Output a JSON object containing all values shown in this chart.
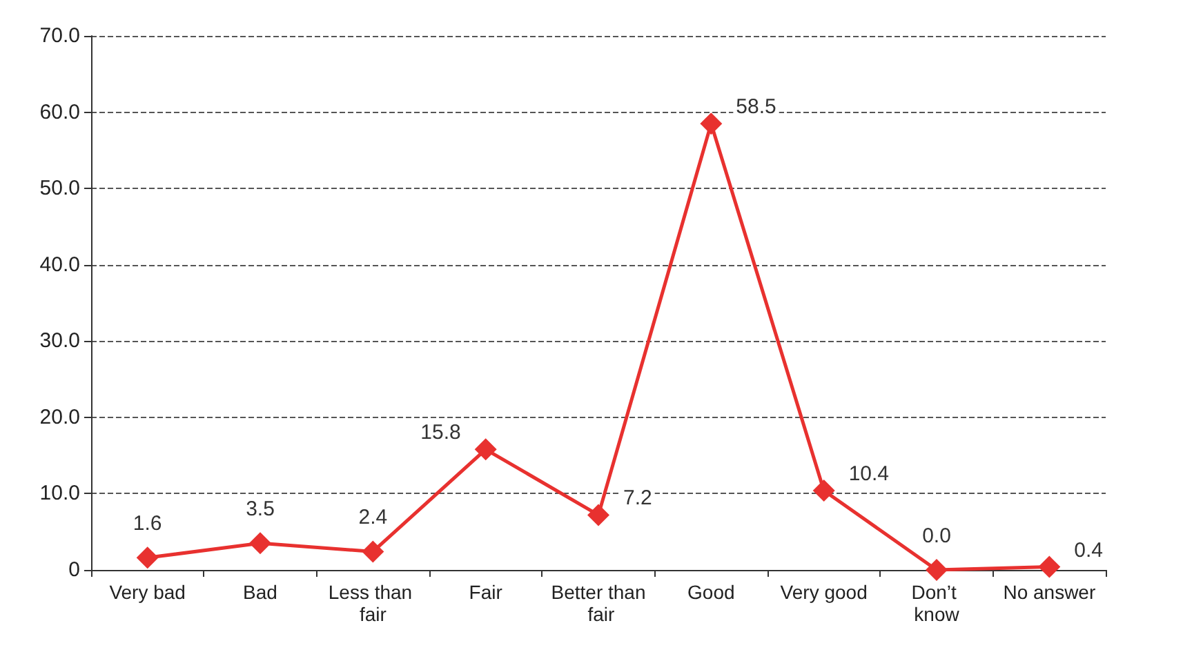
{
  "chart_data": {
    "type": "line",
    "categories": [
      "Very bad",
      "Bad",
      "Less than fair",
      "Fair",
      "Better than fair",
      "Good",
      "Very good",
      "Don’t know",
      "No answer"
    ],
    "values": [
      1.6,
      3.5,
      2.4,
      15.8,
      7.2,
      58.5,
      10.4,
      0.0,
      0.4
    ],
    "value_labels": [
      "1.6",
      "3.5",
      "2.4",
      "15.8",
      "7.2",
      "58.5",
      "10.4",
      "0.0",
      "0.4"
    ],
    "color": "#e8312f",
    "marker": "diamond",
    "line_style": "solid",
    "grid": "y",
    "ylim": [
      0,
      70
    ],
    "yticks": [
      {
        "value": 0,
        "label": "0"
      },
      {
        "value": 10,
        "label": "10.0"
      },
      {
        "value": 20,
        "label": "20.0"
      },
      {
        "value": 30,
        "label": "30.0"
      },
      {
        "value": 40,
        "label": "40.0"
      },
      {
        "value": 50,
        "label": "50.0"
      },
      {
        "value": 60,
        "label": "60.0"
      },
      {
        "value": 70,
        "label": "70.0"
      }
    ]
  }
}
